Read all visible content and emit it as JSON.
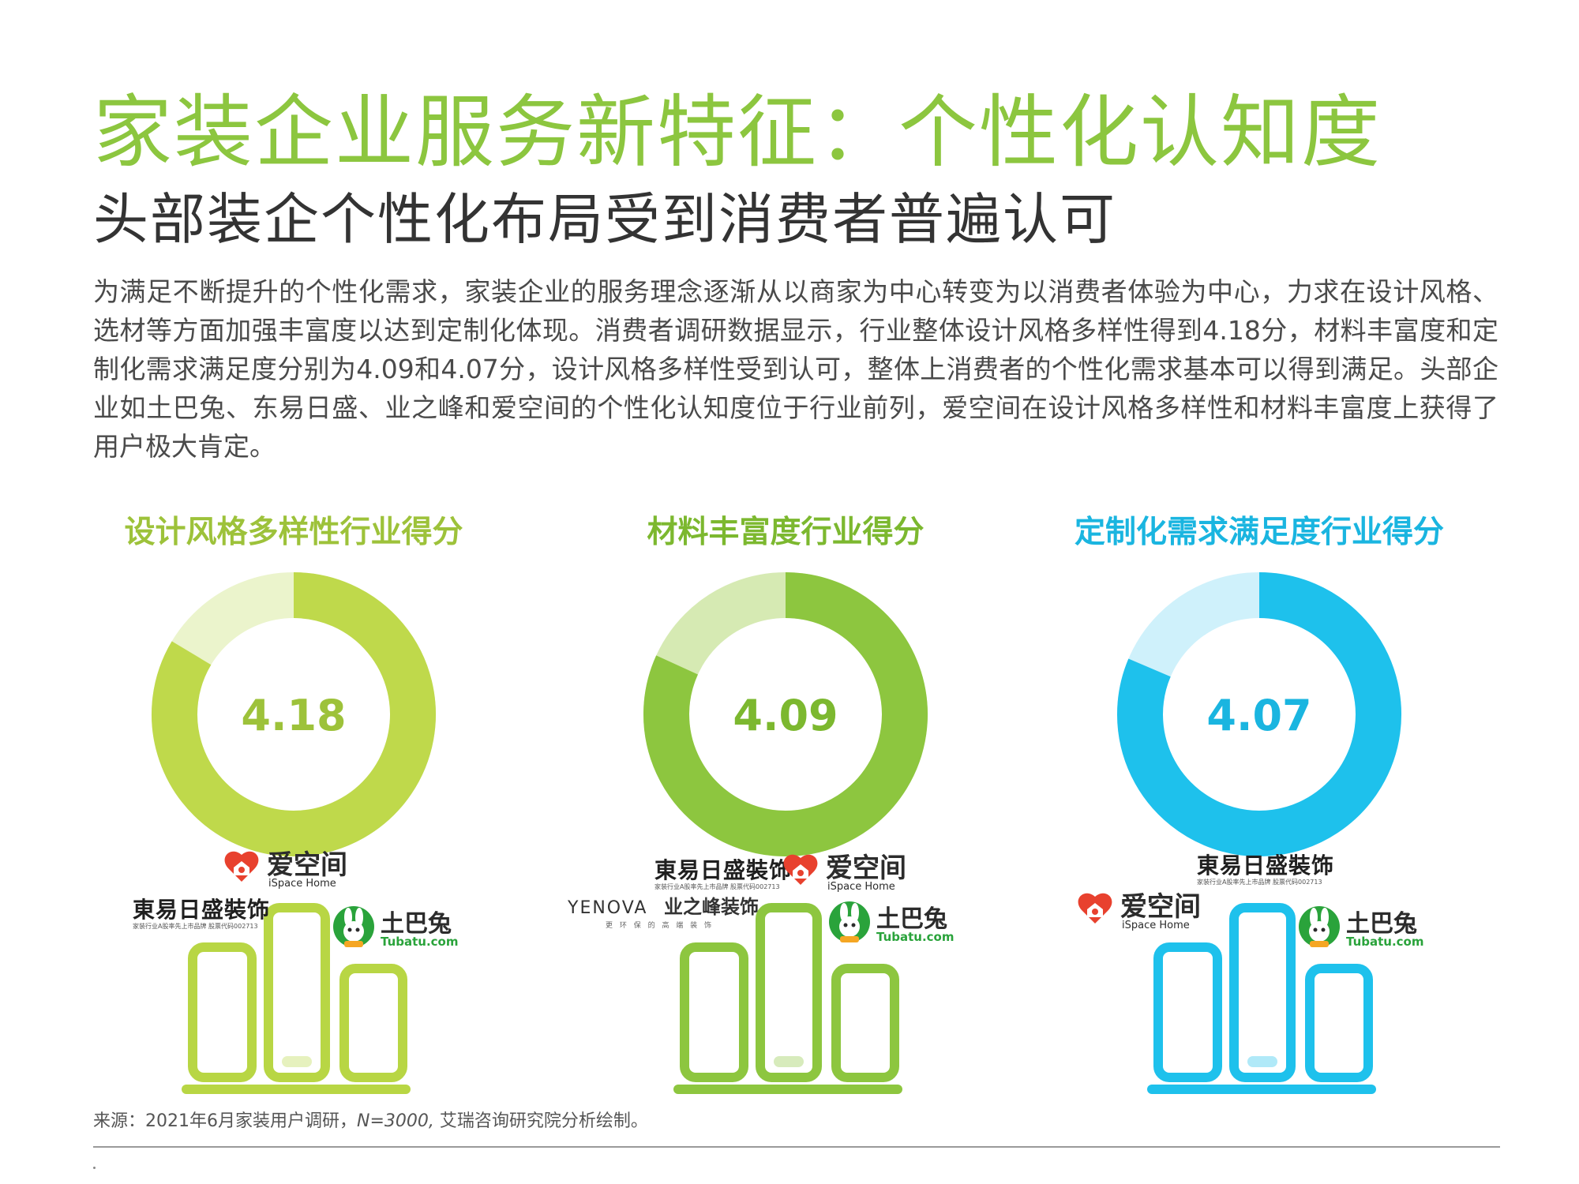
{
  "title": "家装企业服务新特征：个性化认知度",
  "subtitle": "头部装企个性化布局受到消费者普遍认可",
  "body": "为满足不断提升的个性化需求，家装企业的服务理念逐渐从以商家为中心转变为以消费者体验为中心，力求在设计风格、选材等方面加强丰富度以达到定制化体现。消费者调研数据显示，行业整体设计风格多样性得到4.18分，材料丰富度和定制化需求满足度分别为4.09和4.07分，设计风格多样性受到认可，整体上消费者的个性化需求基本可以得到满足。头部企业如土巴兔、东易日盛、业之峰和爱空间的个性化认知度位于行业前列，爱空间在设计风格多样性和材料丰富度上获得了用户极大肯定。",
  "source": {
    "prefix": "来源：2021年6月家装用户调研，",
    "n": "N=3000,",
    "suffix": " 艾瑞咨询研究院分析绘制。"
  },
  "brands": {
    "aikongjian": {
      "name": "爱空间",
      "en": "iSpace Home"
    },
    "dongyi": {
      "name": "東易日盛裝饰",
      "sub": "家装行业A股率先上市品牌 股票代码002713"
    },
    "tubatu": {
      "name": "土巴兔",
      "en": "Tubatu.com"
    },
    "yenova": {
      "name": "YENOVA",
      "cn": "业之峰装饰",
      "sub": "更 环 保 的 高 端 装 饰"
    }
  },
  "chart_data": [
    {
      "type": "donut",
      "title": "设计风格多样性行业得分",
      "value": 4.18,
      "max": 5,
      "colors": {
        "main": "#bfd94b",
        "rest": "#ebf4cc",
        "label": "#9dc23a"
      },
      "podium": {
        "first": "aikongjian",
        "second": "dongyi",
        "third": "tubatu",
        "color": "#b8d644"
      }
    },
    {
      "type": "donut",
      "title": "材料丰富度行业得分",
      "value": 4.09,
      "max": 5,
      "colors": {
        "main": "#8dc63f",
        "rest": "#d6eab3",
        "label": "#7cb82f"
      },
      "podium": {
        "first": [
          "dongyi",
          "aikongjian"
        ],
        "second": "yenova",
        "third": "tubatu",
        "color": "#8dc63f"
      }
    },
    {
      "type": "donut",
      "title": "定制化需求满足度行业得分",
      "value": 4.07,
      "max": 5,
      "colors": {
        "main": "#1ec1ec",
        "rest": "#cff1fb",
        "label": "#1ab5e0"
      },
      "podium": {
        "first": "dongyi",
        "second": "aikongjian",
        "third": "tubatu",
        "color": "#1ec1ec"
      }
    }
  ]
}
